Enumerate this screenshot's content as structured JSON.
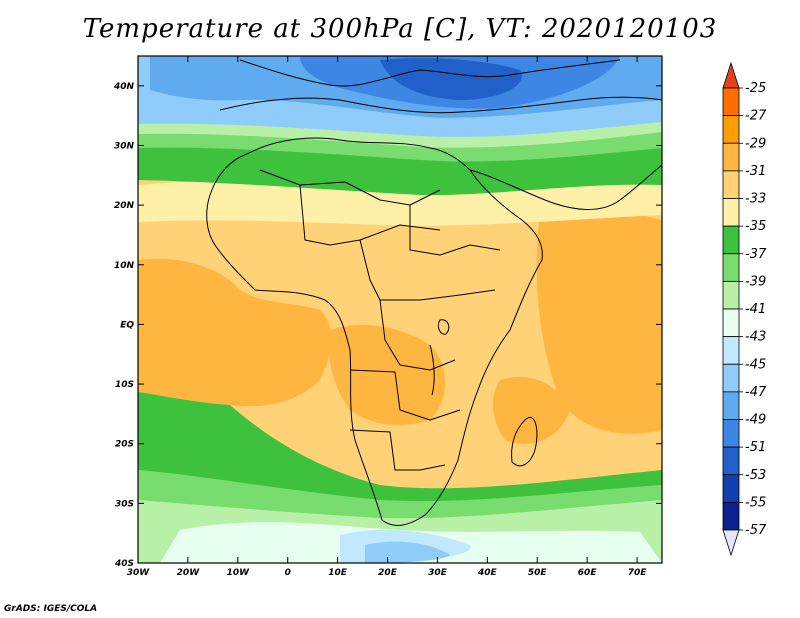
{
  "title": "Temperature at 300hPa [C], VT: 2020120103",
  "credit": "GrADS: IGES/COLA",
  "map": {
    "lon_range": [
      -30,
      75
    ],
    "lat_range": [
      -40,
      45
    ],
    "lon_ticks": [
      {
        "value": -30,
        "label": "30W"
      },
      {
        "value": -20,
        "label": "20W"
      },
      {
        "value": -10,
        "label": "10W"
      },
      {
        "value": 0,
        "label": "0"
      },
      {
        "value": 10,
        "label": "10E"
      },
      {
        "value": 20,
        "label": "20E"
      },
      {
        "value": 30,
        "label": "30E"
      },
      {
        "value": 40,
        "label": "40E"
      },
      {
        "value": 50,
        "label": "50E"
      },
      {
        "value": 60,
        "label": "60E"
      },
      {
        "value": 70,
        "label": "70E"
      }
    ],
    "lat_ticks": [
      {
        "value": 40,
        "label": "40N"
      },
      {
        "value": 30,
        "label": "30N"
      },
      {
        "value": 20,
        "label": "20N"
      },
      {
        "value": 10,
        "label": "10N"
      },
      {
        "value": 0,
        "label": "EQ"
      },
      {
        "value": -10,
        "label": "10S"
      },
      {
        "value": -20,
        "label": "20S"
      },
      {
        "value": -30,
        "label": "30S"
      },
      {
        "value": -40,
        "label": "40S"
      }
    ]
  },
  "colorbar": {
    "labels": [
      "-25",
      "-27",
      "-29",
      "-31",
      "-33",
      "-35",
      "-37",
      "-39",
      "-41",
      "-43",
      "-45",
      "-47",
      "-49",
      "-51",
      "-53",
      "-55",
      "-57"
    ],
    "colors": [
      "#e8401c",
      "#ff6f00",
      "#ff9e00",
      "#ffb640",
      "#ffd278",
      "#fff0a8",
      "#3ec23e",
      "#78dc6e",
      "#b8f0a8",
      "#e6fff0",
      "#c0e8ff",
      "#90ccfa",
      "#60aaf0",
      "#3e86e4",
      "#2060c8",
      "#1040b0",
      "#0a2090",
      "#e6e6ff"
    ]
  }
}
